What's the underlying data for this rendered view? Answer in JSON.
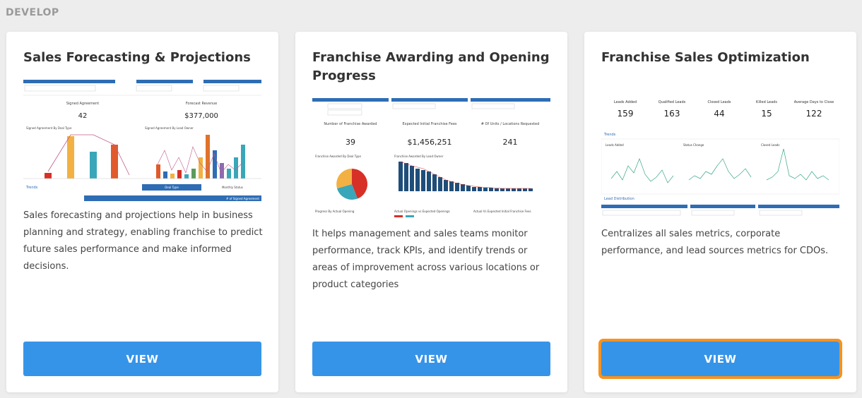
{
  "section": {
    "label": "DEVELOP"
  },
  "cards": [
    {
      "title": "Sales Forecasting & Projections",
      "description": "Sales forecasting and projections help in business planning and strategy, enabling franchise to predict future sales performance and make informed decisions.",
      "button": "VIEW",
      "thumb": {
        "kpis": [
          {
            "label": "Signed Agreement",
            "value": "42"
          },
          {
            "label": "Forecast Revenue",
            "value": "$377,000"
          }
        ],
        "panels": [
          "Signed Agreement By Deal Type",
          "Signed Agreement By Lead Owner"
        ],
        "footer": [
          "Trends",
          "Deal Type",
          "Monthly Status",
          "# of Signed Agreement"
        ]
      }
    },
    {
      "title": "Franchise Awarding and Opening Progress",
      "description": "It helps management and sales teams monitor performance, track KPIs, and identify trends or areas of improvement across various locations or product categories",
      "button": "VIEW",
      "thumb": {
        "kpis": [
          {
            "label": "Number of Franchise Awarded",
            "value": "39"
          },
          {
            "label": "Expected Initial Franchise Fees",
            "value": "$1,456,251"
          },
          {
            "label": "# Of Units / Locations Requested",
            "value": "241"
          }
        ],
        "panels": [
          "Franchise Awarded By Deal Type",
          "Franchise Awarded By Lead Owner"
        ],
        "footer": [
          "Progress By Actual Opening",
          "Actual Openings vs Expected Openings",
          "Actual Vs Expected Initial Franchise Fees"
        ]
      }
    },
    {
      "title": "Franchise Sales Optimization",
      "description": "Centralizes all sales metrics, corporate performance, and lead sources metrics for CDOs.",
      "button": "VIEW",
      "focused": true,
      "thumb": {
        "kpis": [
          {
            "label": "Leads Added",
            "value": "159"
          },
          {
            "label": "Qualified Leads",
            "value": "163"
          },
          {
            "label": "Closed Leads",
            "value": "44"
          },
          {
            "label": "Killed Leads",
            "value": "15"
          },
          {
            "label": "Average Days to Close",
            "value": "122"
          }
        ],
        "panels": [
          "Leads Added",
          "Status Change",
          "Closed Leads"
        ],
        "footer": [
          "Trends",
          "Lead Distribution"
        ]
      }
    }
  ],
  "colors": {
    "button": "#3694e8",
    "focus_ring": "#f6921e",
    "header_bar": "#2e6db4"
  }
}
